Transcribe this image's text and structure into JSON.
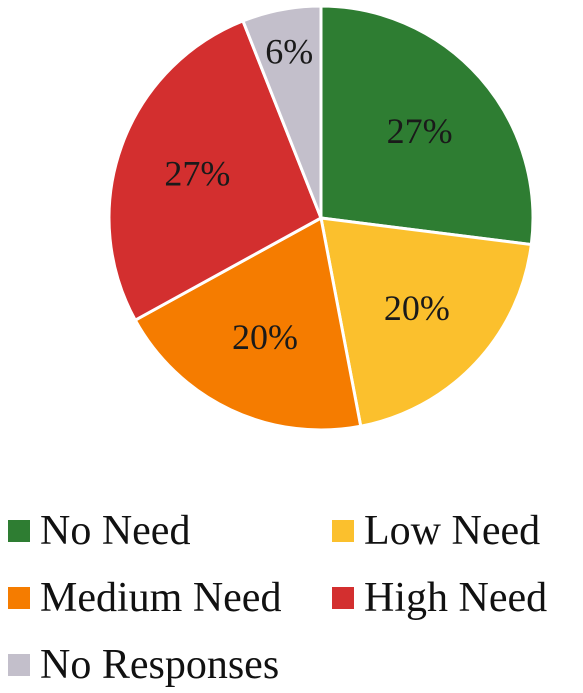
{
  "chart_data": {
    "type": "pie",
    "categories": [
      "No Need",
      "Low Need",
      "Medium Need",
      "High Need",
      "No Responses"
    ],
    "values": [
      27,
      20,
      20,
      27,
      6
    ],
    "labels": [
      "27%",
      "20%",
      "20%",
      "27%",
      "6%"
    ],
    "colors": [
      "#2e7d32",
      "#fbc02d",
      "#f57c00",
      "#d32f2f",
      "#c3bfcb"
    ],
    "start": "12 o'clock",
    "direction": "clockwise",
    "legend_position": "bottom"
  }
}
